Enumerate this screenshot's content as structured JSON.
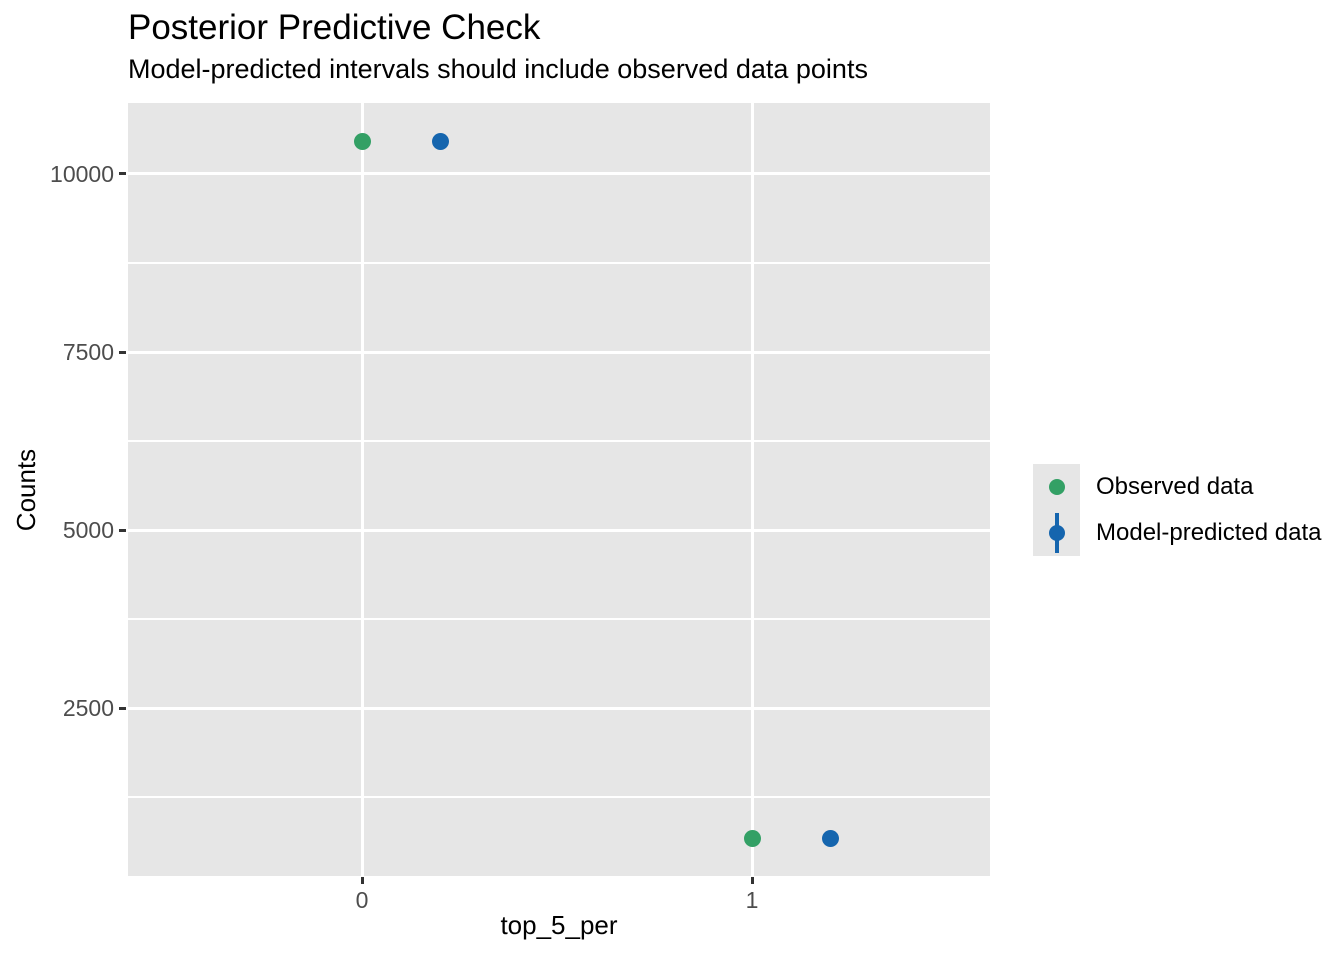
{
  "chart_data": {
    "type": "scatter",
    "title": "Posterior Predictive Check",
    "subtitle": "Model-predicted intervals should include observed data points",
    "xlabel": "top_5_per",
    "ylabel": "Counts",
    "x_domain": [
      -0.6,
      1.61
    ],
    "y_domain": [
      141,
      10997
    ],
    "x_ticks": [
      0,
      1
    ],
    "y_ticks": [
      2500,
      5000,
      7500,
      10000
    ],
    "y_minor_ticks": [
      1250,
      3750,
      6250,
      8750
    ],
    "grid": "major-and-minor-horizontal, major-vertical, white on gray panel",
    "legend_position": "right",
    "series": [
      {
        "name": "Observed data",
        "glyph": "point",
        "color": "#33A065",
        "points": [
          {
            "x": 0,
            "y": 10460
          },
          {
            "x": 1,
            "y": 670
          }
        ]
      },
      {
        "name": "Model-predicted data",
        "glyph": "pointrange",
        "color": "#1565AE",
        "points": [
          {
            "x": 0.2,
            "y": 10460
          },
          {
            "x": 1.2,
            "y": 670
          }
        ]
      }
    ]
  },
  "colors": {
    "panel_background": "#E6E6E6",
    "gridline": "#FFFFFF",
    "tick_mark": "#333333",
    "tick_label": "#4D4D4D",
    "text": "#000000",
    "legend_key_background": "#E6E6E6",
    "observed": "#33A065",
    "predicted": "#1565AE"
  }
}
